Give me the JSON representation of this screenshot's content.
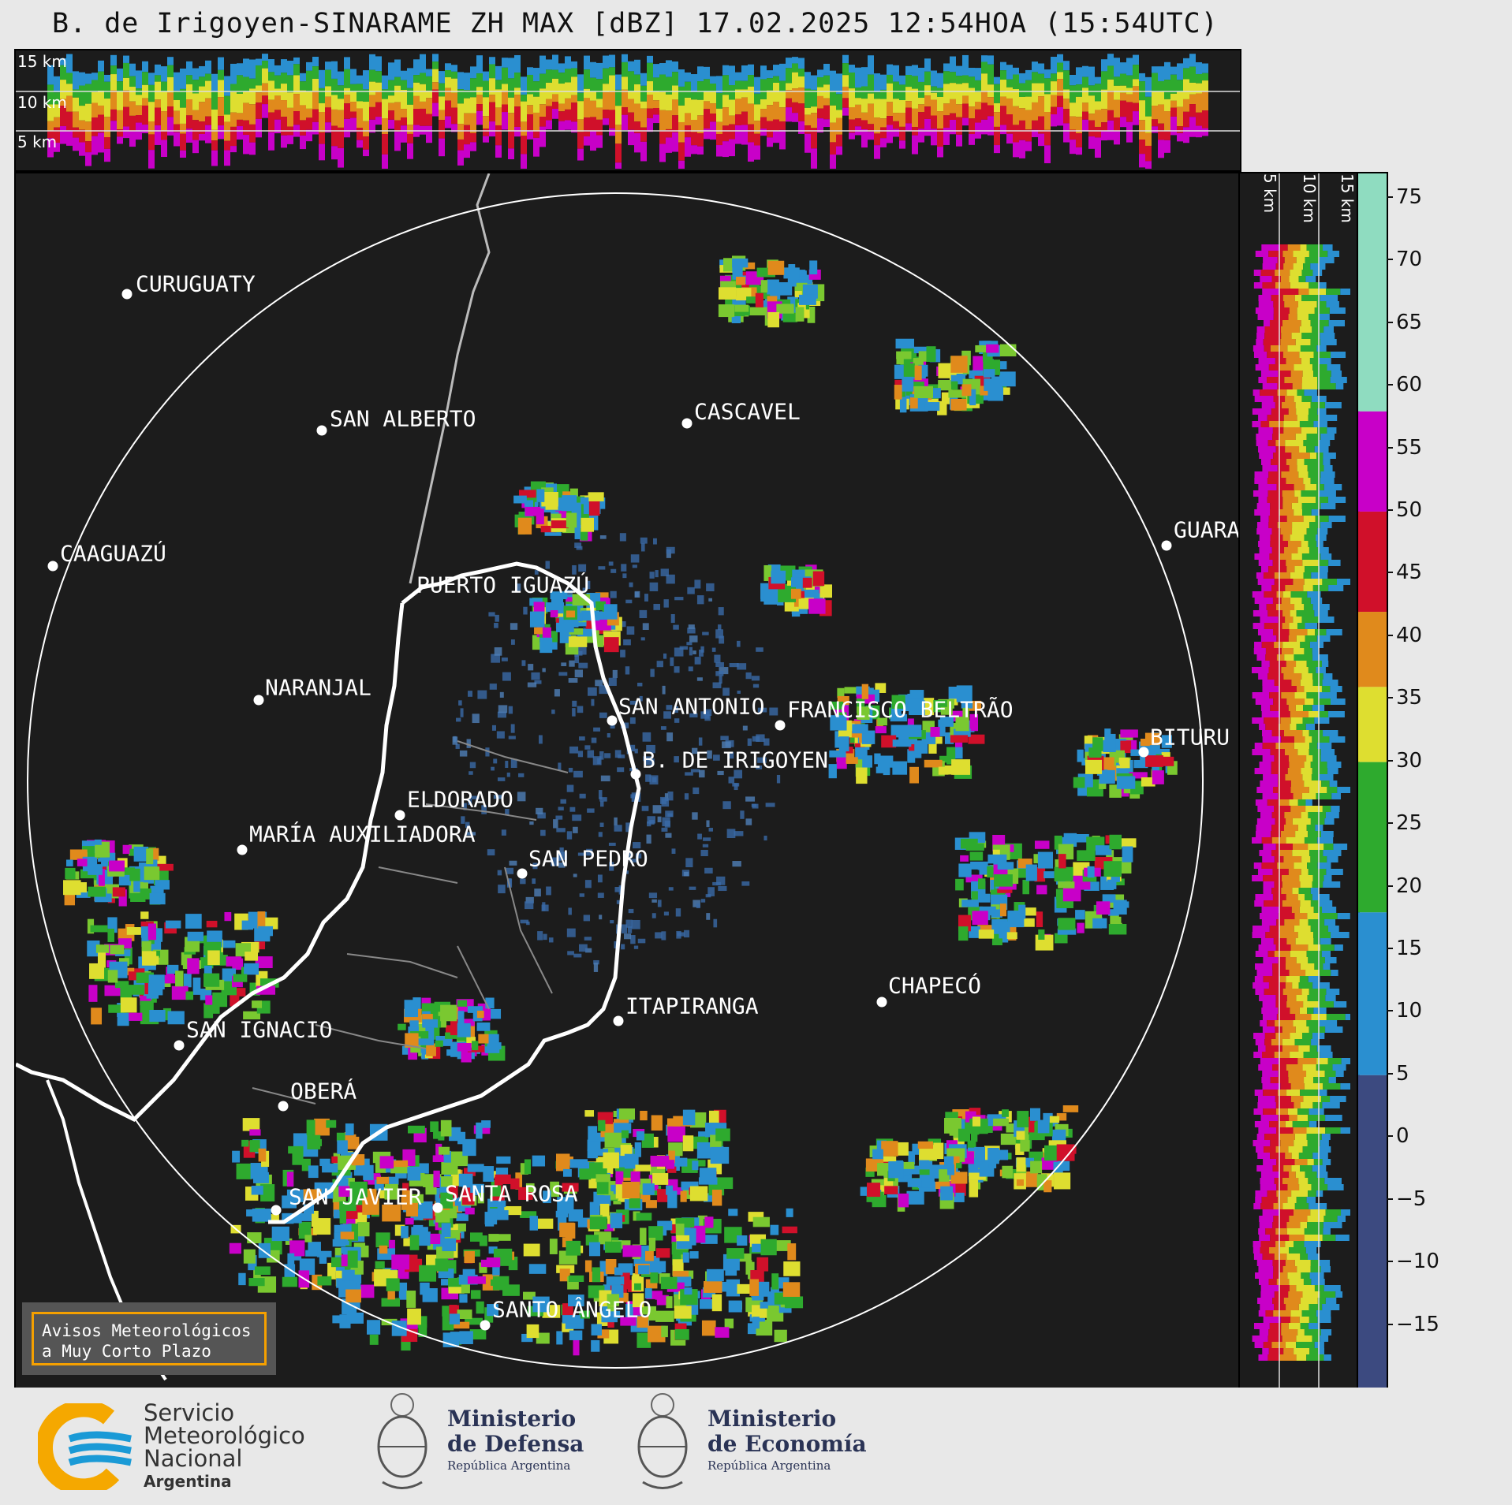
{
  "title": "B. de Irigoyen-SINARAME ZH MAX [dBZ] 17.02.2025 12:54HOA (15:54UTC)",
  "top_panel": {
    "altitudes": [
      "15 km",
      "10 km",
      "5 km"
    ]
  },
  "right_panel": {
    "altitudes": [
      "5 km",
      "10 km",
      "15 km"
    ]
  },
  "colorbar": {
    "ticks": [
      "75",
      "70",
      "65",
      "60",
      "55",
      "50",
      "45",
      "40",
      "35",
      "30",
      "25",
      "20",
      "15",
      "10",
      "5",
      "0",
      "−5",
      "−10",
      "−15"
    ],
    "range": [
      -20,
      77
    ],
    "bands": [
      {
        "from": 58,
        "to": 77,
        "color": "#8fdcc0"
      },
      {
        "from": 50,
        "to": 58,
        "color": "#c800c8"
      },
      {
        "from": 42,
        "to": 50,
        "color": "#d0102a"
      },
      {
        "from": 36,
        "to": 42,
        "color": "#e08a1c"
      },
      {
        "from": 30,
        "to": 36,
        "color": "#dede30"
      },
      {
        "from": 18,
        "to": 30,
        "color": "#2eaa2e"
      },
      {
        "from": 5,
        "to": 18,
        "color": "#2a8fd0"
      },
      {
        "from": -20,
        "to": 5,
        "color": "#3c4a80"
      }
    ]
  },
  "cities": [
    {
      "name": "CURUGUATY"
    },
    {
      "name": "SAN ALBERTO"
    },
    {
      "name": "CASCAVEL"
    },
    {
      "name": "CAAGUAZÚ"
    },
    {
      "name": "GUARA"
    },
    {
      "name": "PUERTO IGUAZÚ"
    },
    {
      "name": "NARANJAL"
    },
    {
      "name": "SAN ANTONIO"
    },
    {
      "name": "FRANCISCO BELTRÃO"
    },
    {
      "name": "BITURU"
    },
    {
      "name": "B. DE IRIGOYEN"
    },
    {
      "name": "ELDORADO"
    },
    {
      "name": "MARÍA AUXILIADORA"
    },
    {
      "name": "SAN PEDRO"
    },
    {
      "name": "CHAPECÓ"
    },
    {
      "name": "ITAPIRANGA"
    },
    {
      "name": "SAN IGNACIO"
    },
    {
      "name": "OBERÁ"
    },
    {
      "name": "SAN JAVIER"
    },
    {
      "name": "SANTA ROSA"
    },
    {
      "name": "SANTO ÂNGELO"
    }
  ],
  "notice": {
    "line1": "Avisos Meteorológicos",
    "line2": "a Muy Corto Plazo"
  },
  "footer": {
    "smn": {
      "line1": "Servicio",
      "line2": "Meteorológico",
      "line3": "Nacional",
      "line4": "Argentina"
    },
    "defensa": {
      "line1": "Ministerio",
      "line2": "de Defensa",
      "line3": "República Argentina"
    },
    "economia": {
      "line1": "Ministerio",
      "line2": "de Economía",
      "line3": "República Argentina"
    }
  }
}
